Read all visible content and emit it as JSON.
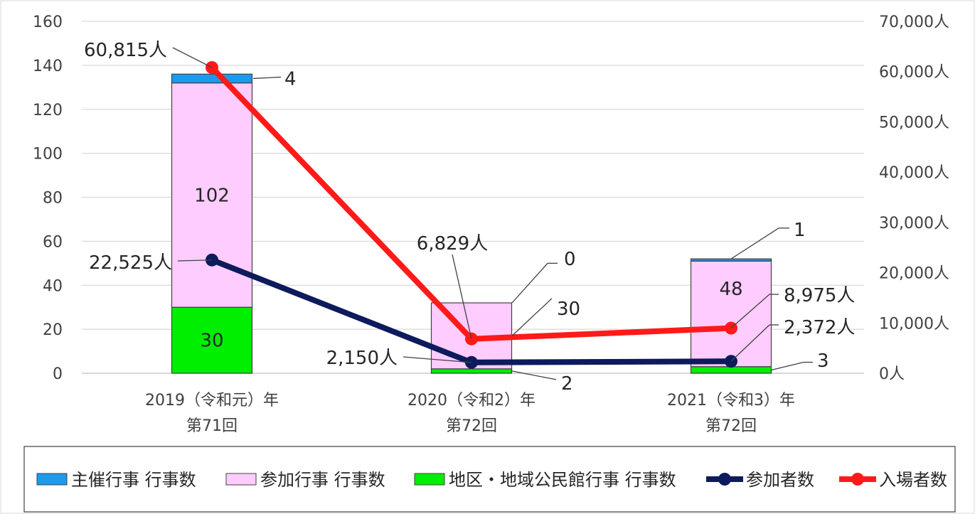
{
  "chart_data": {
    "type": "bar+line",
    "categories": [
      [
        "2019（令和元）年",
        "第71回"
      ],
      [
        "2020（令和2）年",
        "第72回"
      ],
      [
        "2021（令和3）年",
        "第72回"
      ]
    ],
    "left_axis": {
      "min": 0,
      "max": 160,
      "step": 20,
      "ticks": [
        "0",
        "20",
        "40",
        "60",
        "80",
        "100",
        "120",
        "140",
        "160"
      ]
    },
    "right_axis": {
      "min": 0,
      "max": 70000,
      "step": 10000,
      "ticks": [
        "0人",
        "10,000人",
        "20,000人",
        "30,000人",
        "40,000人",
        "50,000人",
        "60,000人",
        "70,000人"
      ]
    },
    "grid": true,
    "bar_series": [
      {
        "name": "地区・地域公民館行事 行事数",
        "color": "#00ee00",
        "values": [
          30,
          2,
          3
        ],
        "labels": [
          "30",
          "2",
          "3"
        ]
      },
      {
        "name": "参加行事 行事数",
        "color": "#ffccff",
        "values": [
          102,
          30,
          48
        ],
        "labels": [
          "102",
          "30",
          "48"
        ]
      },
      {
        "name": "主催行事 行事数",
        "color": "#1a9bef",
        "values": [
          4,
          0,
          1
        ],
        "labels": [
          "4",
          "0",
          "1"
        ]
      }
    ],
    "line_series": [
      {
        "name": "参加者数",
        "color": "#0d1a5c",
        "values": [
          22525,
          2150,
          2372
        ],
        "labels": [
          "22,525人",
          "2,150人",
          "2,372人"
        ]
      },
      {
        "name": "入場者数",
        "color": "#ff1a1a",
        "values": [
          60815,
          6829,
          8975
        ],
        "labels": [
          "60,815人",
          "6,829人",
          "8,975人"
        ]
      }
    ],
    "legend": {
      "position": "bottom",
      "items": [
        {
          "label": "主催行事 行事数",
          "kind": "box",
          "color": "#1a9bef"
        },
        {
          "label": "参加行事 行事数",
          "kind": "box",
          "color": "#ffccff"
        },
        {
          "label": "地区・地域公民館行事 行事数",
          "kind": "box",
          "color": "#00ee00"
        },
        {
          "label": "参加者数",
          "kind": "line",
          "color": "#0d1a5c"
        },
        {
          "label": "入場者数",
          "kind": "line",
          "color": "#ff1a1a"
        }
      ]
    }
  }
}
